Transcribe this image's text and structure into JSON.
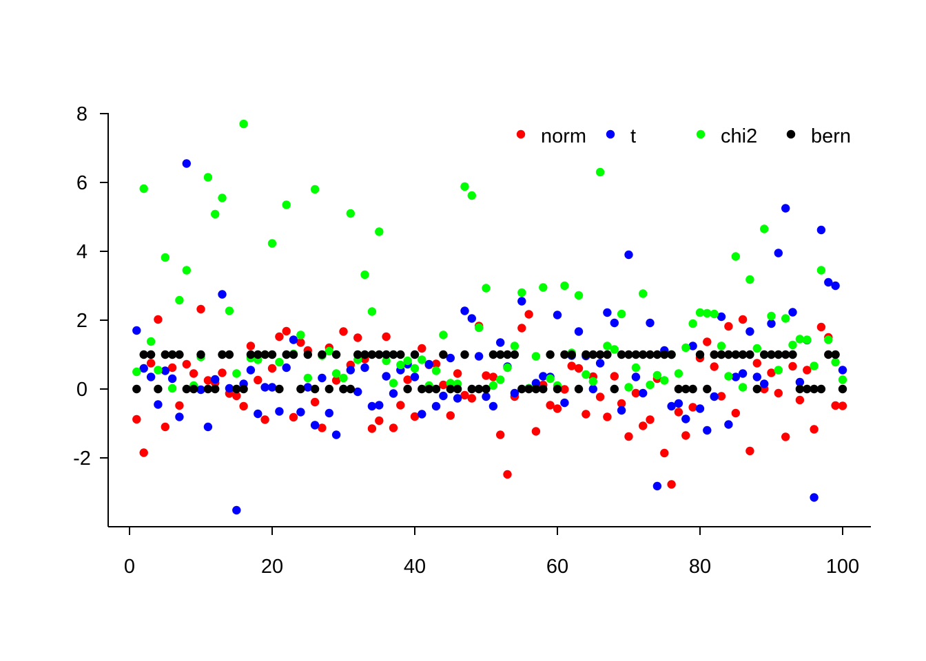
{
  "chart_data": {
    "type": "scatter",
    "title": "",
    "xlabel": "",
    "ylabel": "",
    "xlim": [
      0,
      100
    ],
    "ylim": [
      -3.5,
      8
    ],
    "x_ticks": [
      "0",
      "20",
      "40",
      "60",
      "80",
      "100"
    ],
    "y_ticks": [
      "-2",
      "0",
      "2",
      "4",
      "6",
      "8"
    ],
    "legend_position": "top-right",
    "x": [
      1,
      2,
      3,
      4,
      5,
      6,
      7,
      8,
      9,
      10,
      11,
      12,
      13,
      14,
      15,
      16,
      17,
      18,
      19,
      20,
      21,
      22,
      23,
      24,
      25,
      26,
      27,
      28,
      29,
      30,
      31,
      32,
      33,
      34,
      35,
      36,
      37,
      38,
      39,
      40,
      41,
      42,
      43,
      44,
      45,
      46,
      47,
      48,
      49,
      50,
      51,
      52,
      53,
      54,
      55,
      56,
      57,
      58,
      59,
      60,
      61,
      62,
      63,
      64,
      65,
      66,
      67,
      68,
      69,
      70,
      71,
      72,
      73,
      74,
      75,
      76,
      77,
      78,
      79,
      80,
      81,
      82,
      83,
      84,
      85,
      86,
      87,
      88,
      89,
      90,
      91,
      92,
      93,
      94,
      95,
      96,
      97,
      98,
      99,
      100
    ],
    "series": [
      {
        "name": "norm",
        "color": "#ff0000",
        "values": [
          -0.88,
          -1.85,
          0.75,
          2.02,
          -1.1,
          0.62,
          -0.48,
          0.72,
          0.45,
          2.32,
          0.25,
          0.18,
          0.47,
          -0.13,
          -0.2,
          -0.5,
          1.25,
          0.26,
          -0.89,
          0.6,
          1.52,
          1.68,
          -0.82,
          1.35,
          1.12,
          -0.38,
          -1.13,
          1.2,
          0.25,
          1.67,
          0.7,
          1.49,
          0.87,
          -1.15,
          -0.92,
          1.52,
          -1.13,
          -0.47,
          0.27,
          -0.8,
          1.18,
          0.7,
          0.73,
          0.12,
          -0.77,
          0.45,
          -0.18,
          -0.27,
          1.83,
          0.39,
          0.35,
          -1.33,
          -2.48,
          -0.22,
          1.77,
          2.17,
          -1.23,
          0.12,
          -0.47,
          -0.57,
          -0.01,
          0.67,
          0.6,
          -0.73,
          0.36,
          -0.23,
          -0.81,
          0.37,
          -0.42,
          -1.38,
          -0.12,
          -1.07,
          -0.89,
          0.3,
          -1.86,
          -2.77,
          -0.67,
          -1.35,
          -0.53,
          0.9,
          1.37,
          0.65,
          -0.21,
          1.82,
          -0.7,
          2.02,
          -1.8,
          0.75,
          0.0,
          0.47,
          -0.12,
          -1.39,
          0.66,
          -0.32,
          0.55,
          -1.17,
          1.8,
          1.5,
          -0.48,
          -0.49
        ]
      },
      {
        "name": "t",
        "color": "#0000ff",
        "values": [
          1.7,
          0.6,
          0.35,
          -0.45,
          0.53,
          0.3,
          -0.81,
          6.55,
          0.05,
          -0.02,
          -1.1,
          0.28,
          2.75,
          0.02,
          -3.52,
          0.15,
          0.55,
          -0.72,
          0.05,
          0.05,
          -0.65,
          0.62,
          1.43,
          -0.67,
          0.05,
          -1.05,
          0.32,
          -0.7,
          -1.33,
          0.0,
          0.55,
          -0.08,
          0.62,
          -0.5,
          -0.47,
          0.37,
          -0.13,
          0.55,
          0.72,
          0.35,
          -0.73,
          0.72,
          -0.5,
          -0.2,
          0.9,
          -0.27,
          2.27,
          2.05,
          0.95,
          -0.22,
          -0.5,
          1.35,
          0.65,
          -0.12,
          2.55,
          0.02,
          0.17,
          0.37,
          0.35,
          2.15,
          -0.4,
          0.97,
          1.67,
          0.96,
          0.0,
          0.75,
          2.22,
          1.92,
          -0.62,
          3.9,
          0.35,
          -0.12,
          1.92,
          -2.82,
          1.12,
          -0.5,
          -0.42,
          -0.87,
          1.25,
          -0.57,
          -1.2,
          -0.22,
          2.1,
          -1.03,
          0.35,
          0.45,
          1.67,
          0.35,
          0.15,
          1.9,
          3.95,
          5.25,
          2.23,
          0.2,
          1.42,
          -3.15,
          4.62,
          3.1,
          3.0,
          0.55
        ]
      },
      {
        "name": "chi2",
        "color": "#00ff00",
        "values": [
          0.5,
          5.82,
          1.38,
          0.55,
          3.82,
          0.02,
          2.58,
          3.45,
          0.1,
          0.93,
          6.15,
          5.08,
          5.55,
          2.27,
          0.45,
          7.7,
          0.9,
          0.85,
          1.0,
          4.23,
          0.78,
          5.35,
          1.02,
          1.57,
          0.32,
          5.8,
          0.97,
          1.1,
          0.45,
          0.32,
          5.1,
          0.85,
          3.32,
          2.25,
          4.57,
          0.82,
          0.17,
          0.7,
          0.82,
          0.6,
          0.85,
          0.1,
          0.53,
          1.57,
          0.17,
          0.15,
          5.88,
          5.62,
          1.78,
          2.93,
          0.1,
          0.27,
          0.62,
          1.25,
          2.8,
          0.02,
          0.95,
          2.95,
          0.3,
          0.1,
          3.0,
          1.05,
          2.72,
          0.42,
          0.22,
          6.3,
          1.25,
          1.15,
          2.18,
          0.05,
          0.62,
          2.77,
          0.12,
          0.4,
          0.25,
          1.0,
          0.45,
          1.2,
          1.9,
          2.22,
          2.2,
          2.18,
          1.25,
          0.37,
          3.85,
          0.05,
          3.18,
          1.18,
          4.65,
          2.12,
          0.55,
          2.05,
          1.28,
          1.45,
          1.43,
          0.67,
          3.45,
          1.43,
          0.78,
          0.27
        ]
      },
      {
        "name": "bern",
        "color": "#000000",
        "values": [
          0,
          1,
          1,
          0,
          1,
          1,
          1,
          0,
          0,
          1,
          0,
          0,
          1,
          1,
          0,
          0,
          1,
          1,
          1,
          1,
          0,
          1,
          1,
          0,
          1,
          0,
          1,
          0,
          1,
          0,
          0,
          1,
          1,
          1,
          1,
          1,
          1,
          1,
          0,
          1,
          0,
          0,
          0,
          1,
          0,
          0,
          1,
          0,
          0,
          0,
          1,
          1,
          1,
          1,
          0,
          0,
          0,
          0,
          1,
          0,
          1,
          1,
          0,
          1,
          1,
          1,
          1,
          0,
          1,
          1,
          1,
          1,
          1,
          1,
          1,
          1,
          0,
          0,
          0,
          1,
          0,
          1,
          1,
          1,
          1,
          1,
          1,
          0,
          1,
          1,
          1,
          1,
          1,
          0,
          0,
          0,
          0,
          1,
          1,
          0
        ]
      }
    ]
  }
}
